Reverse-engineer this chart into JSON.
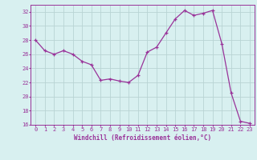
{
  "x": [
    0,
    1,
    2,
    3,
    4,
    5,
    6,
    7,
    8,
    9,
    10,
    11,
    12,
    13,
    14,
    15,
    16,
    17,
    18,
    19,
    20,
    21,
    22,
    23
  ],
  "y": [
    28,
    26.5,
    26,
    26.5,
    26,
    25,
    24.5,
    22.3,
    22.5,
    22.2,
    22,
    23,
    26.3,
    27,
    29,
    31,
    32.2,
    31.5,
    31.8,
    32.2,
    27.5,
    20.5,
    16.5,
    16.2
  ],
  "line_color": "#993399",
  "marker": "+",
  "background_color": "#d8f0f0",
  "grid_color": "#b8d4d4",
  "xlabel": "Windchill (Refroidissement éolien,°C)",
  "ylim": [
    16,
    33
  ],
  "xlim": [
    -0.5,
    23.5
  ],
  "yticks": [
    16,
    18,
    20,
    22,
    24,
    26,
    28,
    30,
    32
  ],
  "xticks": [
    0,
    1,
    2,
    3,
    4,
    5,
    6,
    7,
    8,
    9,
    10,
    11,
    12,
    13,
    14,
    15,
    16,
    17,
    18,
    19,
    20,
    21,
    22,
    23
  ],
  "tick_fontsize": 5,
  "xlabel_fontsize": 5.5
}
